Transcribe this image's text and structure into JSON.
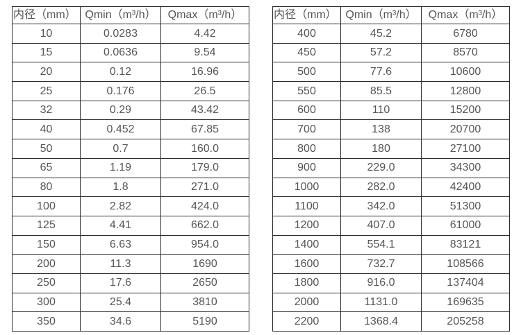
{
  "page": {
    "background_color": "#ffffff",
    "text_color": "#555555",
    "border_color": "#2b2b2b"
  },
  "chart_data": [
    {
      "type": "table",
      "name": "flow-table-small-diameters",
      "columns": [
        "内径（mm）",
        "Qmin（m³/h）",
        "Qmax（m³/h）"
      ],
      "rows": [
        [
          "10",
          "0.0283",
          "4.42"
        ],
        [
          "15",
          "0.0636",
          "9.54"
        ],
        [
          "20",
          "0.12",
          "16.96"
        ],
        [
          "25",
          "0.176",
          "26.5"
        ],
        [
          "32",
          "0.29",
          "43.42"
        ],
        [
          "40",
          "0.452",
          "67.85"
        ],
        [
          "50",
          "0.7",
          "160.0"
        ],
        [
          "65",
          "1.19",
          "179.0"
        ],
        [
          "80",
          "1.8",
          "271.0"
        ],
        [
          "100",
          "2.82",
          "424.0"
        ],
        [
          "125",
          "4.41",
          "662.0"
        ],
        [
          "150",
          "6.63",
          "954.0"
        ],
        [
          "200",
          "11.3",
          "1690"
        ],
        [
          "250",
          "17.6",
          "2650"
        ],
        [
          "300",
          "25.4",
          "3810"
        ],
        [
          "350",
          "34.6",
          "5190"
        ]
      ]
    },
    {
      "type": "table",
      "name": "flow-table-large-diameters",
      "columns": [
        "内径（mm）",
        "Qmin（m³/h）",
        "Qmax（m³/h）"
      ],
      "rows": [
        [
          "400",
          "45.2",
          "6780"
        ],
        [
          "450",
          "57.2",
          "8570"
        ],
        [
          "500",
          "77.6",
          "10600"
        ],
        [
          "550",
          "85.5",
          "12800"
        ],
        [
          "600",
          "110",
          "15200"
        ],
        [
          "700",
          "138",
          "20700"
        ],
        [
          "800",
          "180",
          "27100"
        ],
        [
          "900",
          "229.0",
          "34300"
        ],
        [
          "1000",
          "282.0",
          "42400"
        ],
        [
          "1100",
          "342.0",
          "51300"
        ],
        [
          "1200",
          "407.0",
          "61000"
        ],
        [
          "1400",
          "554.1",
          "83121"
        ],
        [
          "1600",
          "732.7",
          "108566"
        ],
        [
          "1800",
          "916.0",
          "137404"
        ],
        [
          "2000",
          "1131.0",
          "169635"
        ],
        [
          "2200",
          "1368.4",
          "205258"
        ]
      ]
    }
  ]
}
